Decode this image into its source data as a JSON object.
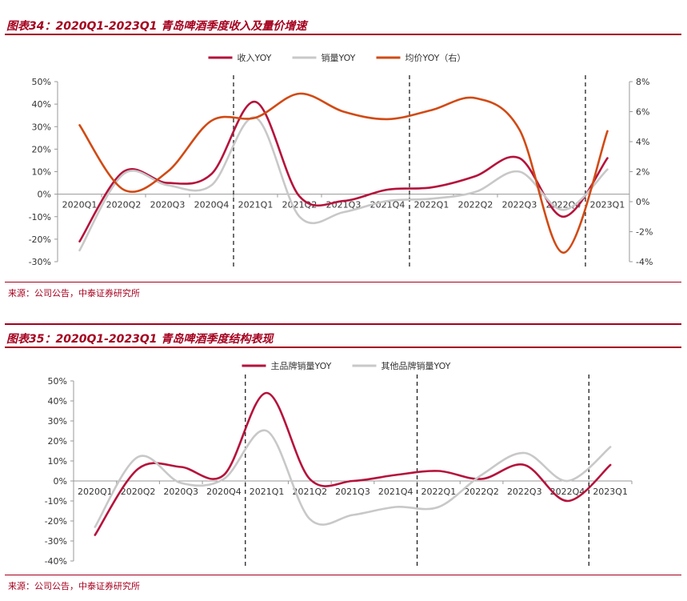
{
  "figure1": {
    "title": "图表34：2020Q1-2023Q1 青岛啤酒季度收入及量价增速",
    "source": "来源：公司公告，中泰证券研究所"
  },
  "figure2": {
    "title": "图表35：2020Q1-2023Q1 青岛啤酒季度结构表现",
    "source": "来源：公司公告，中泰证券研究所"
  },
  "chart_data": [
    {
      "type": "line",
      "categories": [
        "2020Q1",
        "2020Q2",
        "2020Q3",
        "2020Q4",
        "2021Q1",
        "2021Q2",
        "2021Q3",
        "2021Q4",
        "2022Q1",
        "2022Q2",
        "2022Q3",
        "2022Q4",
        "2023Q1"
      ],
      "series": [
        {
          "name": "收入YOY",
          "axis": "left",
          "color": "#b5123b",
          "values": [
            -21,
            10,
            5,
            9,
            41,
            -1,
            -3,
            2,
            3,
            8,
            16,
            -10,
            16
          ]
        },
        {
          "name": "销量YOY",
          "axis": "left",
          "color": "#c8c8c8",
          "values": [
            -25,
            9,
            4,
            4,
            34,
            -10,
            -8,
            -3,
            -2,
            1,
            10,
            -7,
            11
          ]
        },
        {
          "name": "均价YOY（右）",
          "axis": "right",
          "color": "#d14a14",
          "values": [
            5.1,
            0.8,
            2.0,
            5.4,
            5.6,
            7.2,
            6.0,
            5.5,
            6.1,
            6.9,
            4.8,
            -3.4,
            4.7
          ]
        }
      ],
      "ylim": [
        -30,
        50
      ],
      "yticks": [
        "50%",
        "40%",
        "30%",
        "20%",
        "10%",
        "0%",
        "-10%",
        "-20%",
        "-30%"
      ],
      "y2lim": [
        -4,
        8
      ],
      "y2ticks": [
        "8%",
        "6%",
        "4%",
        "2%",
        "0%",
        "-2%",
        "-4%"
      ],
      "vlines_between": [
        3,
        7,
        11
      ],
      "legend": "top-center",
      "grid": false
    },
    {
      "type": "line",
      "categories": [
        "2020Q1",
        "2020Q2",
        "2020Q3",
        "2020Q4",
        "2021Q1",
        "2021Q2",
        "2021Q3",
        "2021Q4",
        "2022Q1",
        "2022Q2",
        "2022Q3",
        "2022Q4",
        "2023Q1"
      ],
      "series": [
        {
          "name": "主品牌销量YOY",
          "axis": "left",
          "color": "#b5123b",
          "values": [
            -27,
            6,
            7,
            3,
            44,
            1,
            0,
            3,
            5,
            1,
            8,
            -10,
            8
          ]
        },
        {
          "name": "其他品牌销量YOY",
          "axis": "left",
          "color": "#c8c8c8",
          "values": [
            -23,
            12,
            -1,
            1,
            25,
            -19,
            -17,
            -13,
            -13,
            3,
            14,
            0,
            17
          ]
        }
      ],
      "ylim": [
        -40,
        50
      ],
      "yticks": [
        "50%",
        "40%",
        "30%",
        "20%",
        "10%",
        "0%",
        "-10%",
        "-20%",
        "-30%",
        "-40%"
      ],
      "vlines_between": [
        3,
        7,
        11
      ],
      "legend": "top-center",
      "grid": false
    }
  ]
}
